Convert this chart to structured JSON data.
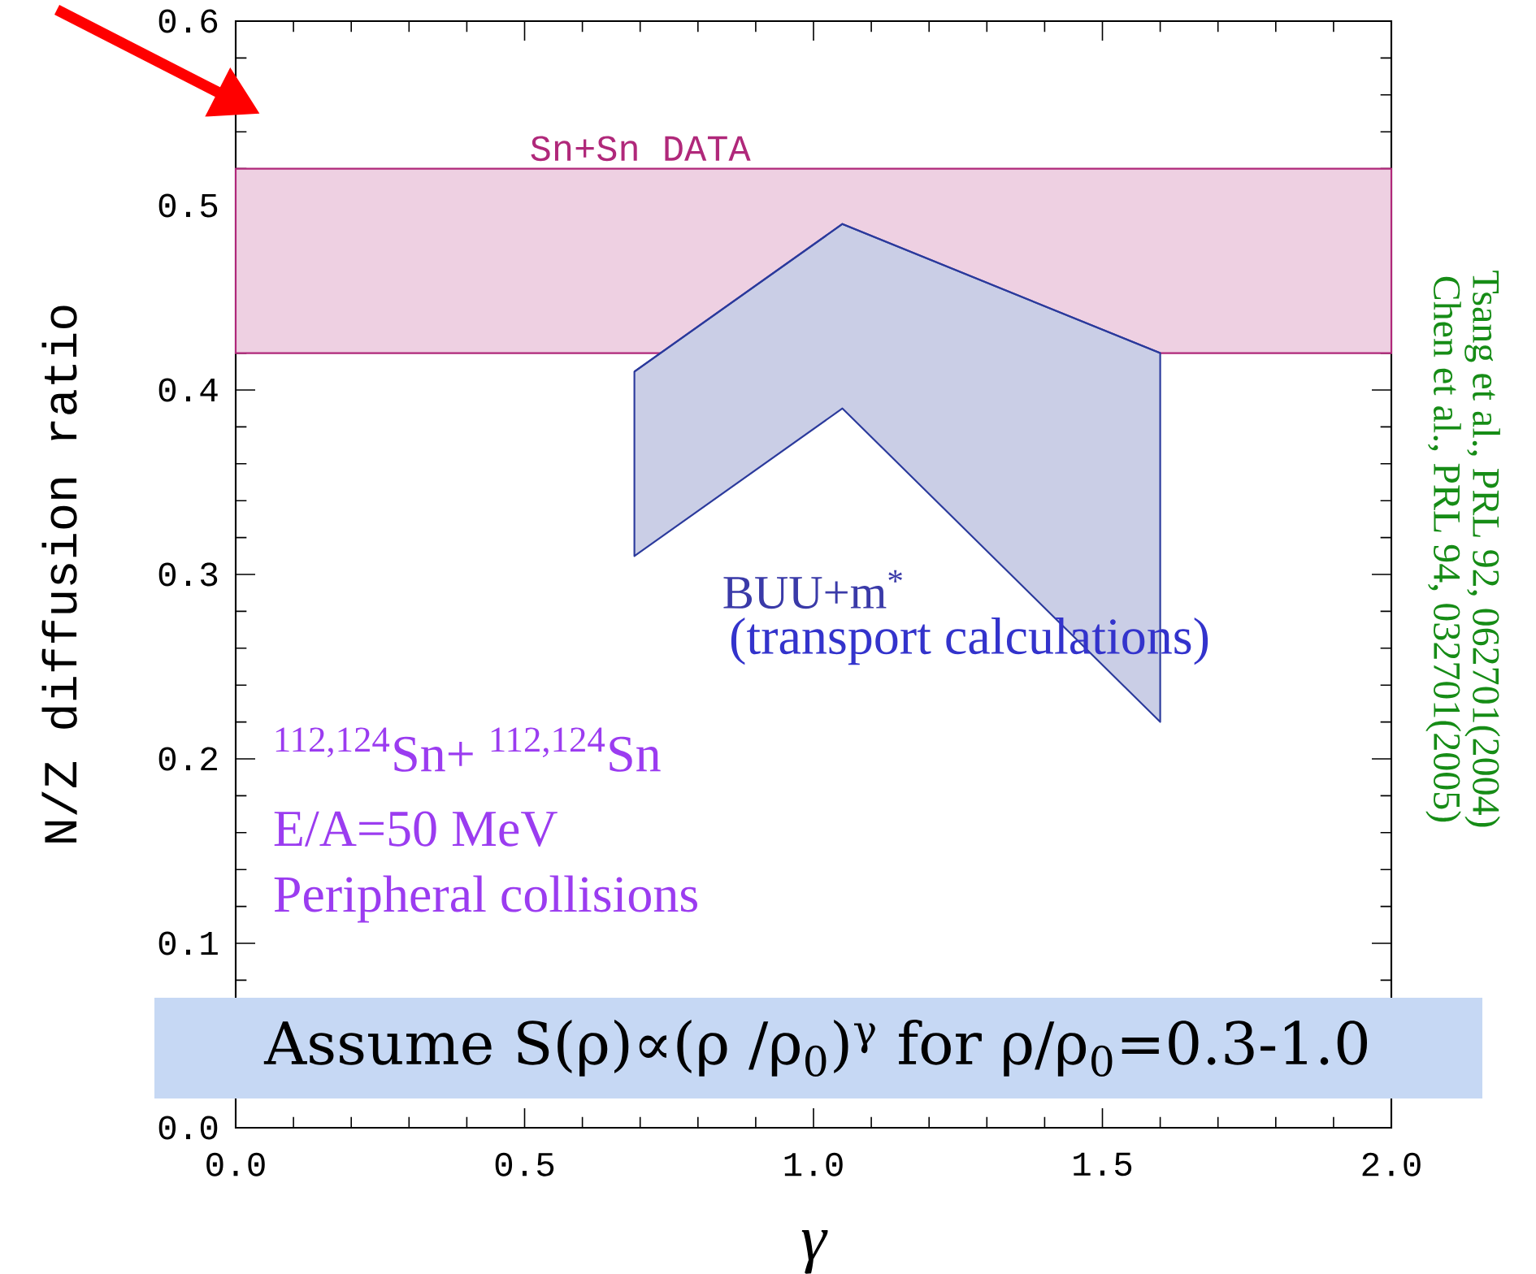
{
  "chart_data": {
    "type": "line",
    "xlabel": "γ",
    "ylabel": "N/Z diffusion ratio",
    "xlim": [
      0,
      2
    ],
    "ylim": [
      0,
      0.6
    ],
    "xticks": [
      {
        "value": 0,
        "label": "0.0"
      },
      {
        "value": 0.5,
        "label": "0.5"
      },
      {
        "value": 1,
        "label": "1.0"
      },
      {
        "value": 1.5,
        "label": "1.5"
      },
      {
        "value": 2,
        "label": "2.0"
      }
    ],
    "yticks": [
      {
        "value": 0,
        "label": "0.0"
      },
      {
        "value": 0.1,
        "label": "0.1"
      },
      {
        "value": 0.2,
        "label": "0.2"
      },
      {
        "value": 0.3,
        "label": "0.3"
      },
      {
        "value": 0.4,
        "label": "0.4"
      },
      {
        "value": 0.5,
        "label": "0.5"
      },
      {
        "value": 0.6,
        "label": "0.6"
      }
    ],
    "bands": [
      {
        "axis": "y",
        "from": 0.42,
        "to": 0.52,
        "label": "Sn+Sn DATA",
        "color": "#b0287a"
      }
    ],
    "series": [
      {
        "color": "#2b3a9c",
        "x": [
          0.69,
          1.05,
          1.6
        ],
        "values": [
          0.41,
          0.49,
          0.42
        ],
        "lower": [
          0.31,
          0.39,
          0.22
        ],
        "upper": [
          0.41,
          0.49,
          0.42
        ]
      }
    ],
    "annotations": [
      "BUU+m$^{*}$",
      "(transport calculations)",
      "$^{112,124}$Sn+ $^{112,124}$Sn",
      "E/A=50 MeV",
      "Peripheral collisions",
      "Tsang et al., PRL 92, 062701(2004)",
      "Chen et al., PRL 94, 032701(2005)",
      "Assume S(ρ)∝(ρ /ρ$_{0}$)$^{γ}$ for ρ/ρ$_{0}$=0.3-1.0"
    ]
  }
}
